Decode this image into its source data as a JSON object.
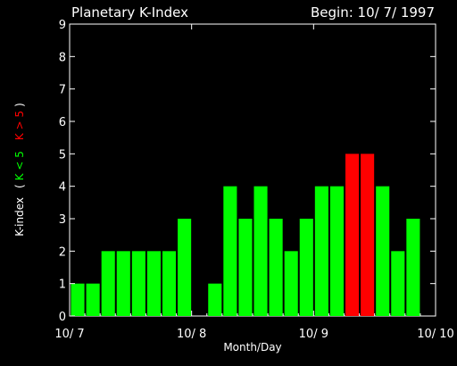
{
  "colors": {
    "background": "#000000",
    "axis": "#ffffff",
    "low": "#00ff00",
    "high": "#ff0000"
  },
  "header": {
    "title": "Planetary K-Index",
    "begin": "Begin: 10/ 7/ 1997"
  },
  "chart_data": {
    "type": "bar",
    "title": "Planetary K-Index",
    "xlabel": "Month/Day",
    "ylabel_parts": {
      "main": "K-index",
      "open": "(",
      "low": "K < 5",
      "high": "K > 5",
      "close": ")"
    },
    "ylim": [
      0,
      9
    ],
    "yticks": [
      "0",
      "1",
      "2",
      "3",
      "4",
      "5",
      "6",
      "7",
      "8",
      "9"
    ],
    "xtick_labels": [
      "10/ 7",
      "10/ 8",
      "10/ 9",
      "10/ 10"
    ],
    "x_range_days": [
      0,
      3
    ],
    "bars_per_day": 8,
    "threshold": 5,
    "values": [
      1,
      1,
      2,
      2,
      2,
      2,
      2,
      3,
      0,
      1,
      4,
      3,
      4,
      3,
      2,
      3,
      4,
      4,
      5,
      5,
      4,
      2,
      3,
      null
    ],
    "grid": false
  }
}
